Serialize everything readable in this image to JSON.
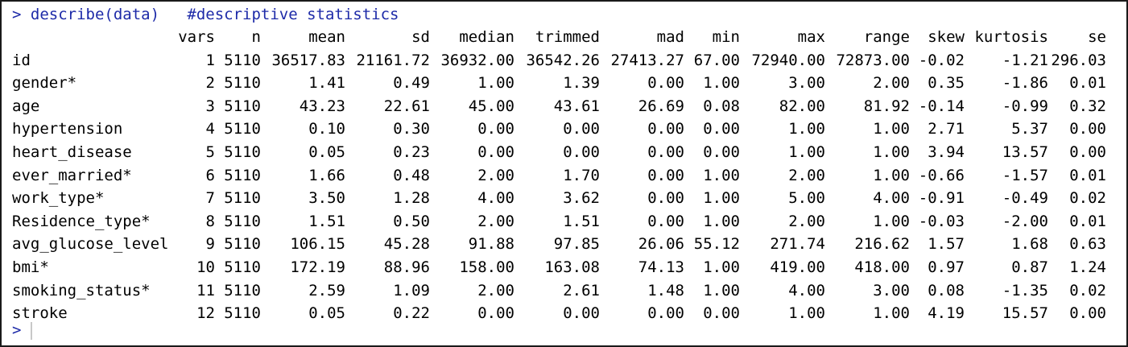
{
  "console": {
    "prompt": ">",
    "command": "describe(data)",
    "comment": "#descriptive statistics",
    "input_prompt": ">"
  },
  "table": {
    "columns": [
      "",
      "vars",
      "n",
      "mean",
      "sd",
      "median",
      "trimmed",
      "mad",
      "min",
      "max",
      "range",
      "skew",
      "kurtosis",
      "se"
    ],
    "rows": [
      [
        "id",
        "1",
        "5110",
        "36517.83",
        "21161.72",
        "36932.00",
        "36542.26",
        "27413.27",
        "67.00",
        "72940.00",
        "72873.00",
        "-0.02",
        "-1.21",
        "296.03"
      ],
      [
        "gender*",
        "2",
        "5110",
        "1.41",
        "0.49",
        "1.00",
        "1.39",
        "0.00",
        "1.00",
        "3.00",
        "2.00",
        "0.35",
        "-1.86",
        "0.01"
      ],
      [
        "age",
        "3",
        "5110",
        "43.23",
        "22.61",
        "45.00",
        "43.61",
        "26.69",
        "0.08",
        "82.00",
        "81.92",
        "-0.14",
        "-0.99",
        "0.32"
      ],
      [
        "hypertension",
        "4",
        "5110",
        "0.10",
        "0.30",
        "0.00",
        "0.00",
        "0.00",
        "0.00",
        "1.00",
        "1.00",
        "2.71",
        "5.37",
        "0.00"
      ],
      [
        "heart_disease",
        "5",
        "5110",
        "0.05",
        "0.23",
        "0.00",
        "0.00",
        "0.00",
        "0.00",
        "1.00",
        "1.00",
        "3.94",
        "13.57",
        "0.00"
      ],
      [
        "ever_married*",
        "6",
        "5110",
        "1.66",
        "0.48",
        "2.00",
        "1.70",
        "0.00",
        "1.00",
        "2.00",
        "1.00",
        "-0.66",
        "-1.57",
        "0.01"
      ],
      [
        "work_type*",
        "7",
        "5110",
        "3.50",
        "1.28",
        "4.00",
        "3.62",
        "0.00",
        "1.00",
        "5.00",
        "4.00",
        "-0.91",
        "-0.49",
        "0.02"
      ],
      [
        "Residence_type*",
        "8",
        "5110",
        "1.51",
        "0.50",
        "2.00",
        "1.51",
        "0.00",
        "1.00",
        "2.00",
        "1.00",
        "-0.03",
        "-2.00",
        "0.01"
      ],
      [
        "avg_glucose_level",
        "9",
        "5110",
        "106.15",
        "45.28",
        "91.88",
        "97.85",
        "26.06",
        "55.12",
        "271.74",
        "216.62",
        "1.57",
        "1.68",
        "0.63"
      ],
      [
        "bmi*",
        "10",
        "5110",
        "172.19",
        "88.96",
        "158.00",
        "163.08",
        "74.13",
        "1.00",
        "419.00",
        "418.00",
        "0.97",
        "0.87",
        "1.24"
      ],
      [
        "smoking_status*",
        "11",
        "5110",
        "2.59",
        "1.09",
        "2.00",
        "2.61",
        "1.48",
        "1.00",
        "4.00",
        "3.00",
        "0.08",
        "-1.35",
        "0.02"
      ],
      [
        "stroke",
        "12",
        "5110",
        "0.05",
        "0.22",
        "0.00",
        "0.00",
        "0.00",
        "0.00",
        "1.00",
        "1.00",
        "4.19",
        "15.57",
        "0.00"
      ]
    ]
  },
  "colors": {
    "command": "#1d2aa8",
    "output": "#000000",
    "border": "#1a1a1a"
  }
}
